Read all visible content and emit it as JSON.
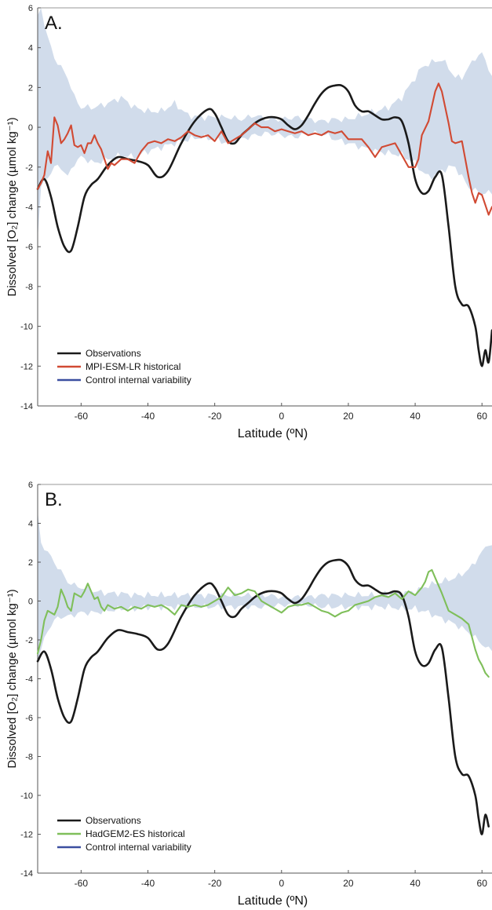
{
  "chart_data": [
    {
      "type": "line",
      "panel_label": "A.",
      "xlabel": "Latitude (ºN)",
      "ylabel": "Dissolved [O₂] change (µmol kg⁻¹)",
      "xlim": [
        -73,
        63
      ],
      "ylim": [
        -14,
        6
      ],
      "xticks": [
        -60,
        -40,
        -20,
        0,
        20,
        40,
        60
      ],
      "yticks": [
        -14,
        -12,
        -10,
        -8,
        -6,
        -4,
        -2,
        0,
        2,
        4,
        6
      ],
      "legend_position": "bottom-left",
      "colors": {
        "observations": "#1a1a1a",
        "model": "#d14a33",
        "band": "#c9d6e8",
        "band_legend": "#3b4fa0"
      },
      "legend": [
        "Observations",
        "MPI-ESM-LR historical",
        "Control internal variability"
      ],
      "band": {
        "name": "Control internal variability",
        "x": [
          -73,
          -72,
          -70,
          -68,
          -66,
          -64,
          -62,
          -60,
          -56,
          -52,
          -48,
          -44,
          -40,
          -36,
          -32,
          -28,
          -24,
          -20,
          -16,
          -12,
          -8,
          -4,
          0,
          4,
          8,
          12,
          16,
          20,
          24,
          28,
          32,
          36,
          38,
          40,
          42,
          44,
          46,
          48,
          50,
          52,
          54,
          56,
          58,
          60,
          62,
          63
        ],
        "upper": [
          5.5,
          6.0,
          4.5,
          3.5,
          3.0,
          2.5,
          1.5,
          1.0,
          1.0,
          1.2,
          1.5,
          1.0,
          0.8,
          0.8,
          1.2,
          0.6,
          0.5,
          0.5,
          0.5,
          0.4,
          0.6,
          0.4,
          0.4,
          0.5,
          0.4,
          0.3,
          0.4,
          0.4,
          0.6,
          0.8,
          1.0,
          1.5,
          2.0,
          2.5,
          3.0,
          3.2,
          3.3,
          3.4,
          3.0,
          2.5,
          2.5,
          3.0,
          3.5,
          3.7,
          3.0,
          2.5
        ],
        "lower": [
          -5.5,
          -3.0,
          -2.5,
          -2.0,
          -2.0,
          -2.5,
          -1.8,
          -1.5,
          -1.8,
          -1.6,
          -1.4,
          -1.5,
          -1.2,
          -1.0,
          -0.8,
          -0.6,
          -0.5,
          -0.6,
          -0.8,
          -0.6,
          -0.4,
          -0.3,
          -0.4,
          -0.5,
          -0.3,
          -0.3,
          -0.6,
          -0.8,
          -1.0,
          -1.2,
          -1.3,
          -1.4,
          -1.6,
          -1.8,
          -2.2,
          -2.5,
          -2.4,
          -2.2,
          -2.0,
          -2.0,
          -2.5,
          -3.0,
          -3.2,
          -3.3,
          -3.3,
          -3.3
        ]
      },
      "series": [
        {
          "name": "Observations",
          "x": [
            -73,
            -71,
            -69,
            -67,
            -65,
            -63,
            -61,
            -59,
            -57,
            -55,
            -52,
            -49,
            -46,
            -43,
            -40,
            -37,
            -34,
            -30,
            -26,
            -22,
            -20,
            -18,
            -16,
            -14,
            -12,
            -10,
            -8,
            -6,
            -4,
            -2,
            0,
            2,
            4,
            6,
            8,
            10,
            12,
            14,
            16,
            18,
            20,
            22,
            24,
            26,
            28,
            30,
            32,
            34,
            36,
            38,
            40,
            42,
            44,
            46,
            48,
            50,
            52,
            54,
            56,
            58,
            59,
            60,
            61,
            62,
            63
          ],
          "values": [
            -3.1,
            -2.6,
            -3.5,
            -5.0,
            -6.0,
            -6.2,
            -5.0,
            -3.5,
            -2.9,
            -2.6,
            -1.9,
            -1.5,
            -1.6,
            -1.7,
            -1.9,
            -2.5,
            -2.2,
            -0.8,
            0.3,
            0.9,
            0.7,
            0.0,
            -0.7,
            -0.8,
            -0.4,
            -0.1,
            0.2,
            0.4,
            0.5,
            0.5,
            0.4,
            0.1,
            -0.1,
            0.1,
            0.6,
            1.2,
            1.7,
            2.0,
            2.1,
            2.1,
            1.8,
            1.1,
            0.8,
            0.8,
            0.6,
            0.4,
            0.4,
            0.5,
            0.3,
            -0.8,
            -2.6,
            -3.3,
            -3.2,
            -2.5,
            -2.4,
            -5.0,
            -8.0,
            -8.9,
            -9.0,
            -10.0,
            -11.2,
            -12.0,
            -11.2,
            -11.8,
            -10.2
          ]
        },
        {
          "name": "MPI-ESM-LR historical",
          "x": [
            -73,
            -72,
            -71,
            -70,
            -69,
            -68,
            -67,
            -66,
            -65,
            -64,
            -63,
            -62,
            -61,
            -60,
            -59,
            -58,
            -57,
            -56,
            -55,
            -54,
            -53,
            -52,
            -51,
            -50,
            -48,
            -46,
            -44,
            -42,
            -40,
            -38,
            -36,
            -34,
            -32,
            -30,
            -28,
            -26,
            -24,
            -22,
            -20,
            -18,
            -16,
            -14,
            -12,
            -10,
            -8,
            -6,
            -4,
            -2,
            0,
            2,
            4,
            6,
            8,
            10,
            12,
            14,
            16,
            18,
            20,
            22,
            24,
            26,
            28,
            30,
            32,
            34,
            36,
            38,
            40,
            41,
            42,
            44,
            46,
            47,
            48,
            50,
            51,
            52,
            54,
            56,
            57,
            58,
            59,
            60,
            61,
            62,
            63
          ],
          "values": [
            -3.1,
            -2.8,
            -2.4,
            -1.2,
            -1.8,
            0.5,
            0.1,
            -0.8,
            -0.6,
            -0.3,
            0.1,
            -0.9,
            -1.0,
            -0.9,
            -1.3,
            -0.8,
            -0.8,
            -0.4,
            -0.8,
            -1.1,
            -1.6,
            -2.1,
            -1.8,
            -1.9,
            -1.6,
            -1.6,
            -1.8,
            -1.2,
            -0.8,
            -0.7,
            -0.8,
            -0.6,
            -0.7,
            -0.5,
            -0.2,
            -0.4,
            -0.5,
            -0.4,
            -0.7,
            -0.2,
            -0.8,
            -0.6,
            -0.4,
            -0.1,
            0.2,
            0.0,
            0.0,
            -0.2,
            -0.1,
            -0.2,
            -0.3,
            -0.2,
            -0.4,
            -0.3,
            -0.4,
            -0.2,
            -0.3,
            -0.2,
            -0.6,
            -0.6,
            -0.6,
            -1.0,
            -1.5,
            -1.0,
            -0.9,
            -0.8,
            -1.4,
            -2.0,
            -2.0,
            -1.6,
            -0.4,
            0.3,
            1.8,
            2.2,
            1.8,
            0.2,
            -0.7,
            -0.8,
            -0.7,
            -2.5,
            -3.3,
            -3.8,
            -3.3,
            -3.4,
            -3.9,
            -4.4,
            -4.0
          ]
        }
      ]
    },
    {
      "type": "line",
      "panel_label": "B.",
      "xlabel": "Latitude (ºN)",
      "ylabel": "Dissolved [O₂] change (µmol kg⁻¹)",
      "xlim": [
        -73,
        63
      ],
      "ylim": [
        -14,
        6
      ],
      "xticks": [
        -60,
        -40,
        -20,
        0,
        20,
        40,
        60
      ],
      "yticks": [
        -14,
        -12,
        -10,
        -8,
        -6,
        -4,
        -2,
        0,
        2,
        4,
        6
      ],
      "legend_position": "bottom-left",
      "colors": {
        "observations": "#1a1a1a",
        "model": "#7fbf5a",
        "band": "#c9d6e8",
        "band_legend": "#3b4fa0"
      },
      "legend": [
        "Observations",
        "HadGEM2-ES historical",
        "Control internal variability"
      ],
      "band": {
        "name": "Control internal variability",
        "x": [
          -73,
          -72,
          -70,
          -68,
          -66,
          -64,
          -62,
          -60,
          -56,
          -52,
          -48,
          -44,
          -40,
          -36,
          -32,
          -28,
          -24,
          -20,
          -16,
          -12,
          -8,
          -4,
          0,
          4,
          8,
          12,
          16,
          20,
          24,
          28,
          32,
          36,
          40,
          44,
          48,
          52,
          56,
          60,
          62,
          63
        ],
        "upper": [
          4.5,
          3.0,
          2.5,
          2.0,
          1.5,
          1.0,
          0.8,
          0.7,
          0.5,
          0.4,
          0.4,
          0.3,
          0.3,
          0.3,
          0.3,
          0.3,
          0.3,
          0.3,
          0.3,
          0.3,
          0.3,
          0.3,
          0.2,
          0.2,
          0.2,
          0.3,
          0.3,
          0.3,
          0.3,
          0.3,
          0.4,
          0.4,
          0.5,
          0.8,
          1.0,
          1.2,
          1.6,
          2.5,
          3.0,
          2.8
        ],
        "lower": [
          -3.0,
          -2.5,
          -1.5,
          -1.0,
          -0.8,
          -0.8,
          -0.7,
          -0.6,
          -0.6,
          -0.5,
          -0.4,
          -0.4,
          -0.3,
          -0.3,
          -0.3,
          -0.3,
          -0.3,
          -0.3,
          -0.3,
          -0.3,
          -0.3,
          -0.3,
          -0.2,
          -0.2,
          -0.2,
          -0.3,
          -0.3,
          -0.3,
          -0.3,
          -0.3,
          -0.3,
          -0.4,
          -0.4,
          -0.6,
          -0.9,
          -1.2,
          -1.6,
          -2.2,
          -2.5,
          -2.5
        ]
      },
      "series": [
        {
          "name": "Observations",
          "x": [
            -73,
            -71,
            -69,
            -67,
            -65,
            -63,
            -61,
            -59,
            -57,
            -55,
            -52,
            -49,
            -46,
            -43,
            -40,
            -37,
            -34,
            -30,
            -26,
            -22,
            -20,
            -18,
            -16,
            -14,
            -12,
            -10,
            -8,
            -6,
            -4,
            -2,
            0,
            2,
            4,
            6,
            8,
            10,
            12,
            14,
            16,
            18,
            20,
            22,
            24,
            26,
            28,
            30,
            32,
            34,
            36,
            38,
            40,
            42,
            44,
            46,
            48,
            50,
            52,
            54,
            56,
            58,
            59,
            60,
            61,
            62
          ],
          "values": [
            -3.1,
            -2.6,
            -3.5,
            -5.0,
            -6.0,
            -6.2,
            -5.0,
            -3.5,
            -2.9,
            -2.6,
            -1.9,
            -1.5,
            -1.6,
            -1.7,
            -1.9,
            -2.5,
            -2.2,
            -0.8,
            0.3,
            0.9,
            0.7,
            0.0,
            -0.7,
            -0.8,
            -0.4,
            -0.1,
            0.2,
            0.4,
            0.5,
            0.5,
            0.4,
            0.1,
            -0.1,
            0.1,
            0.6,
            1.2,
            1.7,
            2.0,
            2.1,
            2.1,
            1.8,
            1.1,
            0.8,
            0.8,
            0.6,
            0.4,
            0.4,
            0.5,
            0.3,
            -0.8,
            -2.6,
            -3.3,
            -3.2,
            -2.5,
            -2.4,
            -5.0,
            -8.0,
            -8.9,
            -9.0,
            -10.0,
            -11.2,
            -12.0,
            -11.0,
            -11.6
          ]
        },
        {
          "name": "HadGEM2-ES historical",
          "x": [
            -73,
            -72,
            -71,
            -70,
            -69,
            -68,
            -67,
            -66,
            -65,
            -64,
            -63,
            -62,
            -61,
            -60,
            -59,
            -58,
            -57,
            -56,
            -55,
            -54,
            -53,
            -52,
            -50,
            -48,
            -46,
            -44,
            -42,
            -40,
            -38,
            -36,
            -34,
            -32,
            -30,
            -28,
            -26,
            -24,
            -22,
            -20,
            -18,
            -16,
            -14,
            -12,
            -10,
            -8,
            -6,
            -4,
            -2,
            0,
            2,
            4,
            6,
            8,
            10,
            12,
            14,
            16,
            18,
            20,
            22,
            24,
            26,
            28,
            30,
            32,
            34,
            36,
            38,
            40,
            42,
            43,
            44,
            45,
            46,
            48,
            50,
            52,
            54,
            56,
            58,
            59,
            60,
            61,
            62
          ],
          "values": [
            -2.7,
            -2.0,
            -1.0,
            -0.5,
            -0.6,
            -0.7,
            -0.3,
            0.6,
            0.2,
            -0.3,
            -0.5,
            0.4,
            0.3,
            0.2,
            0.5,
            0.9,
            0.5,
            0.1,
            0.2,
            -0.3,
            -0.5,
            -0.2,
            -0.4,
            -0.3,
            -0.5,
            -0.3,
            -0.4,
            -0.2,
            -0.3,
            -0.2,
            -0.4,
            -0.7,
            -0.2,
            -0.3,
            -0.2,
            -0.3,
            -0.2,
            0.0,
            0.2,
            0.7,
            0.3,
            0.4,
            0.6,
            0.5,
            0.0,
            -0.2,
            -0.4,
            -0.6,
            -0.3,
            -0.2,
            -0.2,
            -0.1,
            -0.3,
            -0.5,
            -0.6,
            -0.8,
            -0.6,
            -0.5,
            -0.2,
            -0.1,
            0.0,
            0.2,
            0.3,
            0.2,
            0.4,
            0.1,
            0.5,
            0.3,
            0.7,
            1.0,
            1.5,
            1.6,
            1.2,
            0.4,
            -0.5,
            -0.7,
            -0.9,
            -1.2,
            -2.5,
            -3.0,
            -3.3,
            -3.7,
            -3.9
          ]
        }
      ]
    }
  ]
}
